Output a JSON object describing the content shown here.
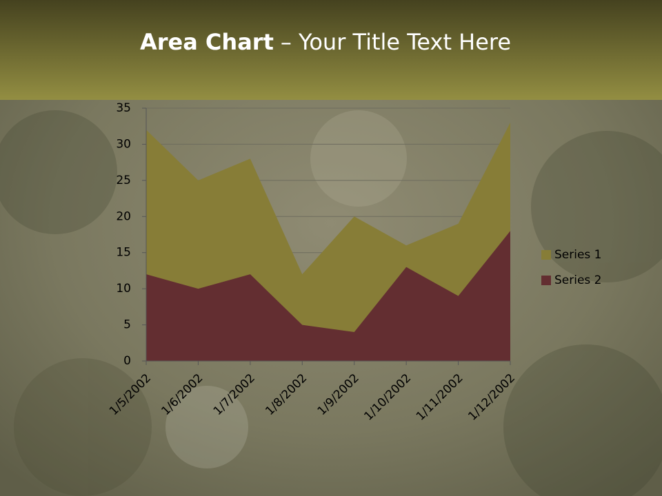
{
  "chart_data": {
    "type": "area",
    "title": [
      "Area Chart",
      "– Your Title Text Here"
    ],
    "categories": [
      "1/5/2002",
      "1/6/2002",
      "1/7/2002",
      "1/8/2002",
      "1/9/2002",
      "1/10/2002",
      "1/11/2002",
      "1/12/2002"
    ],
    "series": [
      {
        "name": "Series 1",
        "color": "#877d37",
        "values": [
          32,
          25,
          28,
          12,
          20,
          16,
          19,
          33
        ]
      },
      {
        "name": "Series 2",
        "color": "#632e31",
        "values": [
          12,
          10,
          12,
          5,
          4,
          13,
          9,
          18
        ]
      }
    ],
    "ylim": [
      0,
      35
    ],
    "yticks": [
      0,
      5,
      10,
      15,
      20,
      25,
      30,
      35
    ],
    "grid": true,
    "legend": "right"
  }
}
